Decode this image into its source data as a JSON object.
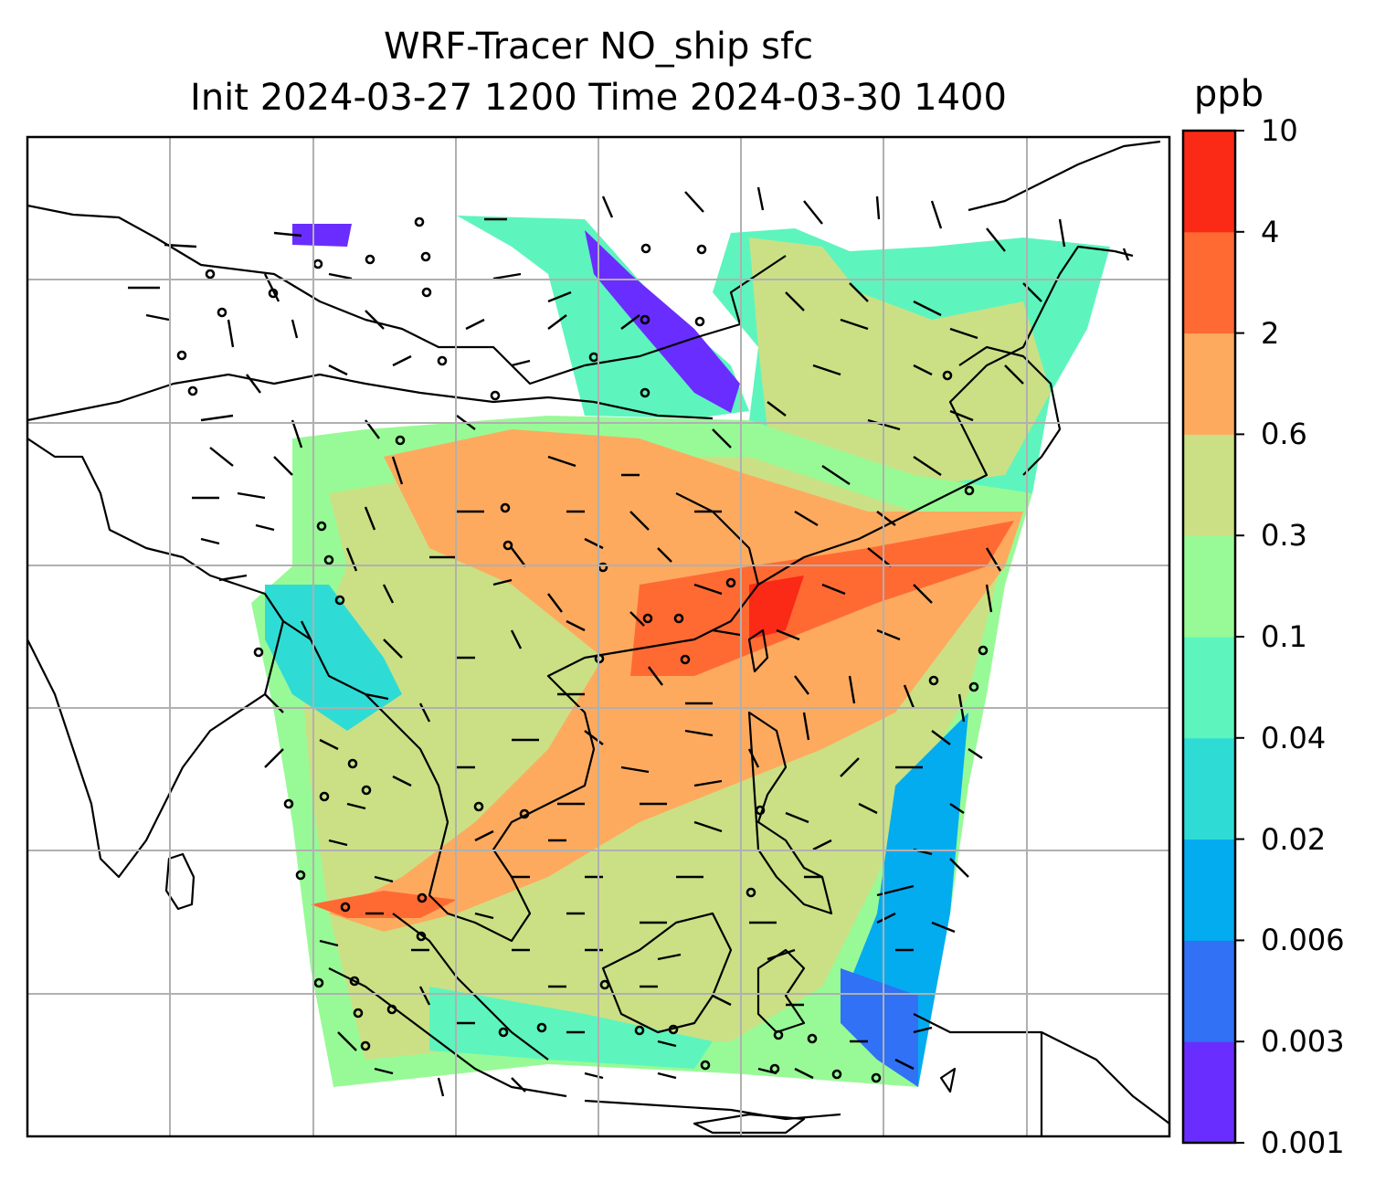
{
  "title": {
    "line1": "WRF-Tracer NO_ship sfc",
    "line2": "Init 2024-03-27 1200 Time 2024-03-30 1400"
  },
  "colorbar": {
    "unit": "ppb",
    "ticks": [
      "0.001",
      "0.003",
      "0.006",
      "0.02",
      "0.04",
      "0.1",
      "0.3",
      "0.6",
      "2",
      "4",
      "10"
    ],
    "colors": [
      "#6a2dff",
      "#3171f5",
      "#03acef",
      "#2fdcd5",
      "#5df5bd",
      "#98fa96",
      "#cbe085",
      "#fdaa5f",
      "#ff6a33",
      "#fa2a16"
    ]
  },
  "map": {
    "land_fill": "#ffffff",
    "coast_color": "#000000",
    "grid_color": "#b0b0b0",
    "field_levels_ppb": [
      0.001,
      0.003,
      0.006,
      0.02,
      0.04,
      0.1,
      0.3,
      0.6,
      2,
      4,
      10
    ]
  }
}
